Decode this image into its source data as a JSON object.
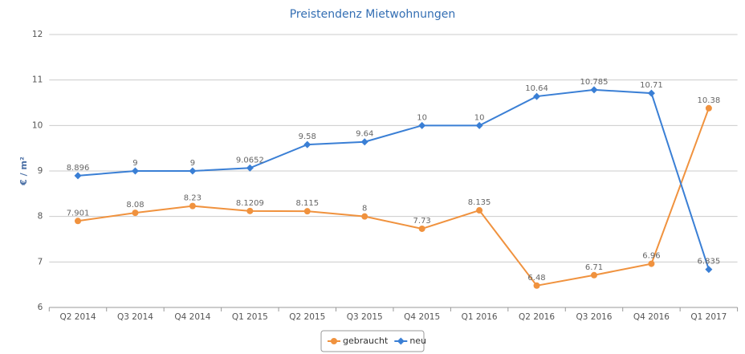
{
  "chart_data": {
    "type": "line",
    "title": "Preistendenz Mietwohnungen",
    "y_label": "€ / m²",
    "categories": [
      "Q2 2014",
      "Q3 2014",
      "Q4 2014",
      "Q1 2015",
      "Q2 2015",
      "Q3 2015",
      "Q4 2015",
      "Q1 2016",
      "Q2 2016",
      "Q3 2016",
      "Q4 2016",
      "Q1 2017"
    ],
    "series": [
      {
        "name": "gebraucht",
        "color": "#f0923e",
        "marker": "circle",
        "values": [
          7.901,
          8.08,
          8.23,
          8.1209,
          8.115,
          8,
          7.73,
          8.135,
          6.48,
          6.71,
          6.96,
          10.38
        ]
      },
      {
        "name": "neu",
        "color": "#3a7fd5",
        "marker": "diamond",
        "values": [
          8.896,
          9,
          9,
          9.0652,
          9.58,
          9.64,
          10,
          10,
          10.64,
          10.785,
          10.71,
          6.835
        ]
      }
    ],
    "ylim": [
      6,
      12
    ],
    "yticks": [
      6,
      7,
      8,
      9,
      10,
      11,
      12
    ],
    "grid": true,
    "legend": "bottom"
  }
}
